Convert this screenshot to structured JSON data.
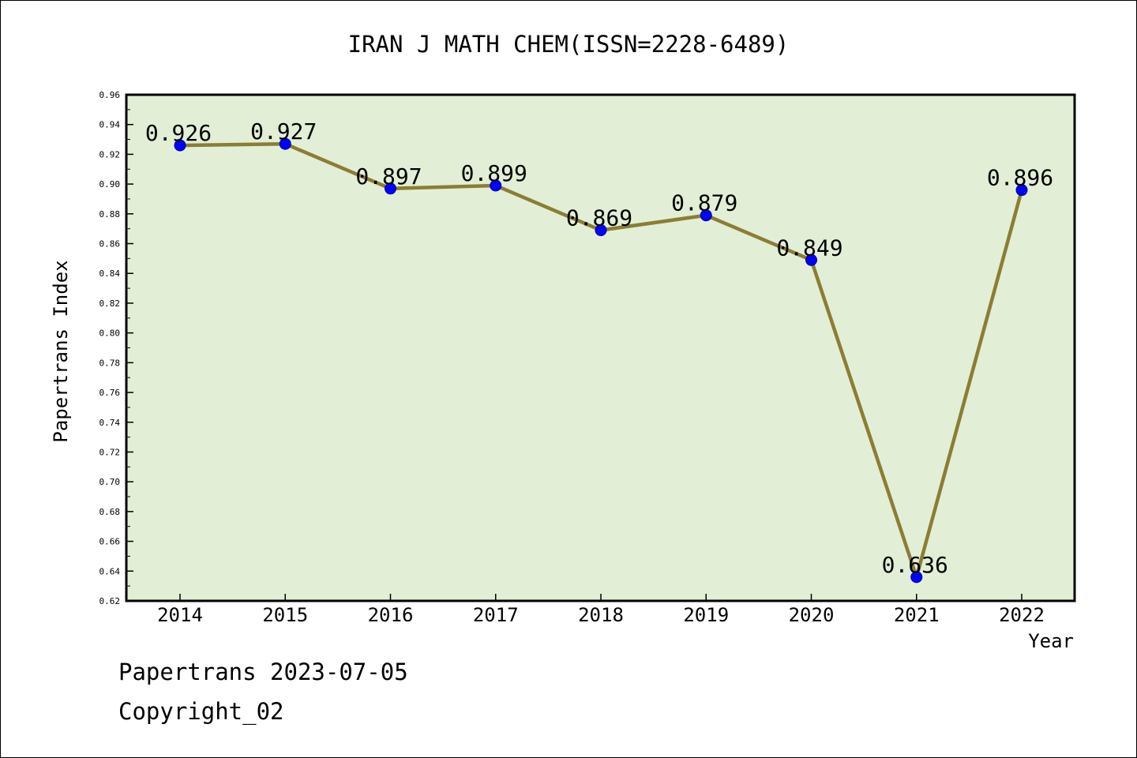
{
  "chart_data": {
    "type": "line",
    "title": "IRAN J MATH CHEM(ISSN=2228-6489)",
    "xlabel": "Year",
    "ylabel": "Papertrans Index",
    "categories": [
      "2014",
      "2015",
      "2016",
      "2017",
      "2018",
      "2019",
      "2020",
      "2021",
      "2022"
    ],
    "values": [
      0.926,
      0.927,
      0.897,
      0.899,
      0.869,
      0.879,
      0.849,
      0.636,
      0.896
    ],
    "value_labels": [
      "0.926",
      "0.927",
      "0.897",
      "0.899",
      "0.869",
      "0.879",
      "0.849",
      "0.636",
      "0.896"
    ],
    "ylim": [
      0.62,
      0.96
    ],
    "yticks": [
      "0.62",
      "0.64",
      "0.66",
      "0.68",
      "0.70",
      "0.72",
      "0.74",
      "0.76",
      "0.78",
      "0.80",
      "0.82",
      "0.84",
      "0.86",
      "0.88",
      "0.90",
      "0.92",
      "0.94",
      "0.96"
    ],
    "grid": false,
    "colors": {
      "plot_background": "#e2efd6",
      "line": "#8b7d35",
      "marker": "#0000ff"
    }
  },
  "footer": {
    "line1": "Papertrans 2023-07-05",
    "line2": "Copyright_02"
  }
}
